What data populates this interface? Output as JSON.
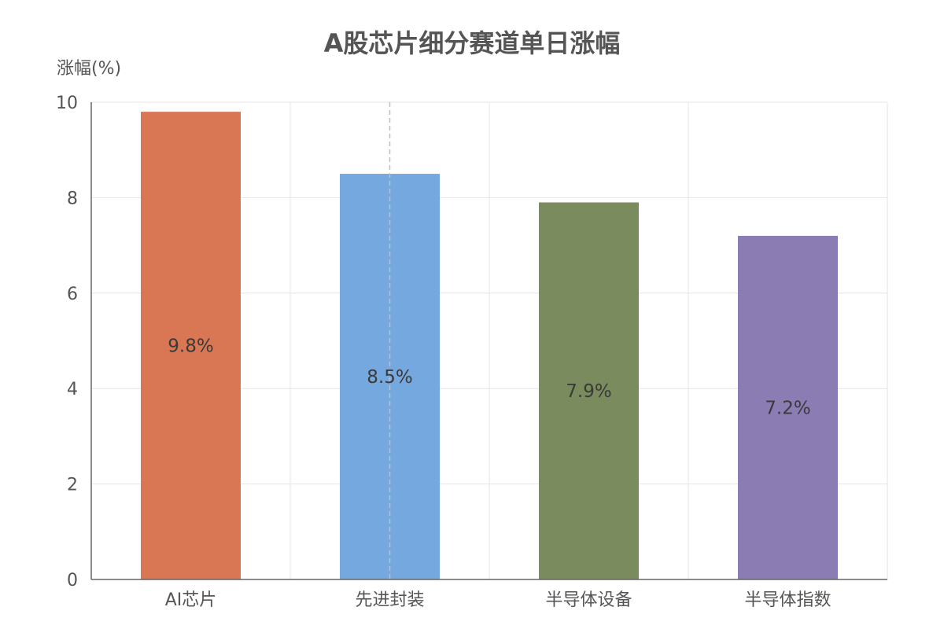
{
  "chart_data": {
    "type": "bar",
    "title": "A股芯片细分赛道单日涨幅",
    "ylabel": "涨幅(%)",
    "xlabel": "",
    "ylim": [
      0,
      10
    ],
    "yticks": [
      0,
      2,
      4,
      6,
      8,
      10
    ],
    "categories": [
      "AI芯片",
      "先进封装",
      "半导体设备",
      "半导体指数"
    ],
    "values": [
      9.8,
      8.5,
      7.9,
      7.2
    ],
    "data_labels": [
      "9.8%",
      "8.5%",
      "7.9%",
      "7.2%"
    ],
    "colors": [
      "#d97755",
      "#75a8de",
      "#7a8b5d",
      "#8b7db4"
    ],
    "grid": true,
    "legend": "none"
  }
}
